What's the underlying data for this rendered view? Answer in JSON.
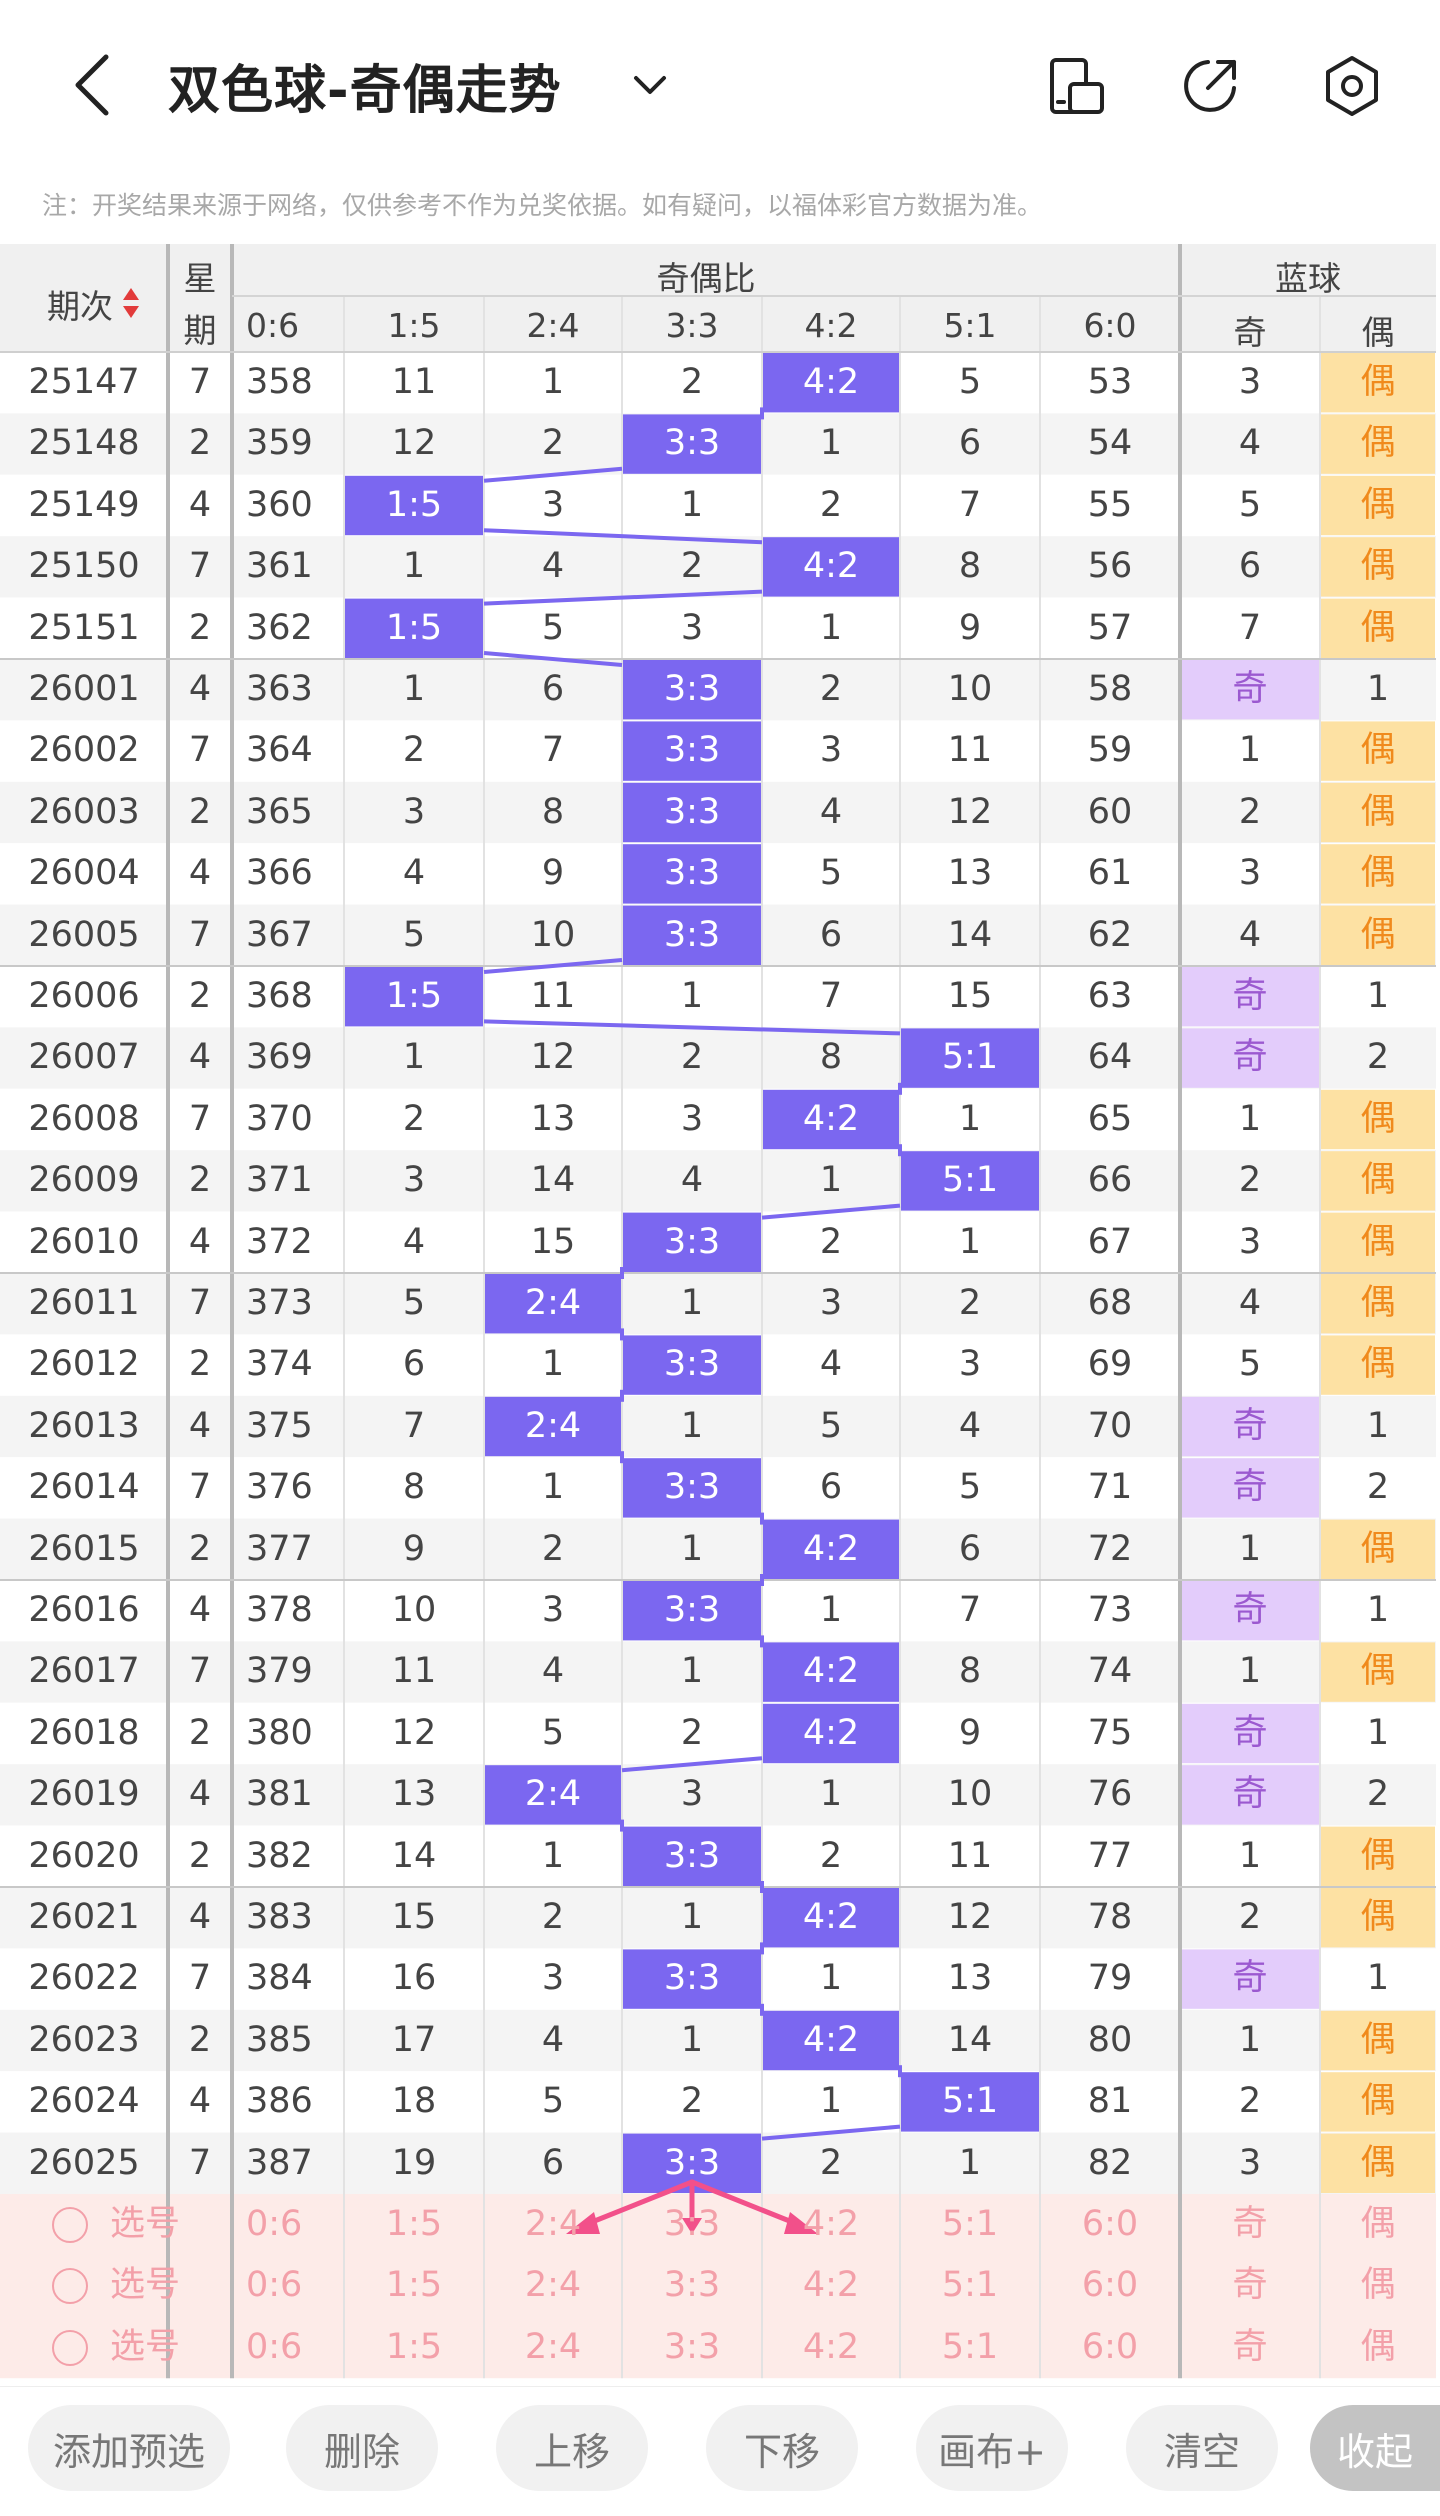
{
  "header": {
    "title": "双色球-奇偶走势",
    "note": "注：开奖结果来源于网络，仅供参考不作为兑奖依据。如有疑问，以福体彩官方数据为准。"
  },
  "icons": {
    "back": "back-arrow-icon",
    "dropdown": "chevron-down-icon",
    "device": "device-rotate-icon",
    "share": "share-icon",
    "settings": "settings-icon"
  },
  "columns": {
    "period": "期次",
    "weekday": "星期",
    "odd_even_group": "奇偶比",
    "ratios": [
      "0:6",
      "1:5",
      "2:4",
      "3:3",
      "4:2",
      "5:1",
      "6:0"
    ],
    "blue_group": "蓝球",
    "blue": [
      "奇",
      "偶"
    ]
  },
  "rows": [
    {
      "p": "25147",
      "w": "7",
      "v": [
        "358",
        "11",
        "1",
        "2",
        "4:2",
        "5",
        "53"
      ],
      "hit": 4,
      "b": [
        "3",
        "偶"
      ],
      "bh": 1
    },
    {
      "p": "25148",
      "w": "2",
      "v": [
        "359",
        "12",
        "2",
        "3:3",
        "1",
        "6",
        "54"
      ],
      "hit": 3,
      "b": [
        "4",
        "偶"
      ],
      "bh": 1
    },
    {
      "p": "25149",
      "w": "4",
      "v": [
        "360",
        "1:5",
        "3",
        "1",
        "2",
        "7",
        "55"
      ],
      "hit": 1,
      "b": [
        "5",
        "偶"
      ],
      "bh": 1
    },
    {
      "p": "25150",
      "w": "7",
      "v": [
        "361",
        "1",
        "4",
        "2",
        "4:2",
        "8",
        "56"
      ],
      "hit": 4,
      "b": [
        "6",
        "偶"
      ],
      "bh": 1
    },
    {
      "p": "25151",
      "w": "2",
      "v": [
        "362",
        "1:5",
        "5",
        "3",
        "1",
        "9",
        "57"
      ],
      "hit": 1,
      "b": [
        "7",
        "偶"
      ],
      "bh": 1
    },
    {
      "p": "26001",
      "w": "4",
      "v": [
        "363",
        "1",
        "6",
        "3:3",
        "2",
        "10",
        "58"
      ],
      "hit": 3,
      "b": [
        "奇",
        "1"
      ],
      "bh": 0
    },
    {
      "p": "26002",
      "w": "7",
      "v": [
        "364",
        "2",
        "7",
        "3:3",
        "3",
        "11",
        "59"
      ],
      "hit": 3,
      "b": [
        "1",
        "偶"
      ],
      "bh": 1
    },
    {
      "p": "26003",
      "w": "2",
      "v": [
        "365",
        "3",
        "8",
        "3:3",
        "4",
        "12",
        "60"
      ],
      "hit": 3,
      "b": [
        "2",
        "偶"
      ],
      "bh": 1
    },
    {
      "p": "26004",
      "w": "4",
      "v": [
        "366",
        "4",
        "9",
        "3:3",
        "5",
        "13",
        "61"
      ],
      "hit": 3,
      "b": [
        "3",
        "偶"
      ],
      "bh": 1
    },
    {
      "p": "26005",
      "w": "7",
      "v": [
        "367",
        "5",
        "10",
        "3:3",
        "6",
        "14",
        "62"
      ],
      "hit": 3,
      "b": [
        "4",
        "偶"
      ],
      "bh": 1
    },
    {
      "p": "26006",
      "w": "2",
      "v": [
        "368",
        "1:5",
        "11",
        "1",
        "7",
        "15",
        "63"
      ],
      "hit": 1,
      "b": [
        "奇",
        "1"
      ],
      "bh": 0
    },
    {
      "p": "26007",
      "w": "4",
      "v": [
        "369",
        "1",
        "12",
        "2",
        "8",
        "5:1",
        "64"
      ],
      "hit": 5,
      "b": [
        "奇",
        "2"
      ],
      "bh": 0
    },
    {
      "p": "26008",
      "w": "7",
      "v": [
        "370",
        "2",
        "13",
        "3",
        "4:2",
        "1",
        "65"
      ],
      "hit": 4,
      "b": [
        "1",
        "偶"
      ],
      "bh": 1
    },
    {
      "p": "26009",
      "w": "2",
      "v": [
        "371",
        "3",
        "14",
        "4",
        "1",
        "5:1",
        "66"
      ],
      "hit": 5,
      "b": [
        "2",
        "偶"
      ],
      "bh": 1
    },
    {
      "p": "26010",
      "w": "4",
      "v": [
        "372",
        "4",
        "15",
        "3:3",
        "2",
        "1",
        "67"
      ],
      "hit": 3,
      "b": [
        "3",
        "偶"
      ],
      "bh": 1
    },
    {
      "p": "26011",
      "w": "7",
      "v": [
        "373",
        "5",
        "2:4",
        "1",
        "3",
        "2",
        "68"
      ],
      "hit": 2,
      "b": [
        "4",
        "偶"
      ],
      "bh": 1
    },
    {
      "p": "26012",
      "w": "2",
      "v": [
        "374",
        "6",
        "1",
        "3:3",
        "4",
        "3",
        "69"
      ],
      "hit": 3,
      "b": [
        "5",
        "偶"
      ],
      "bh": 1
    },
    {
      "p": "26013",
      "w": "4",
      "v": [
        "375",
        "7",
        "2:4",
        "1",
        "5",
        "4",
        "70"
      ],
      "hit": 2,
      "b": [
        "奇",
        "1"
      ],
      "bh": 0
    },
    {
      "p": "26014",
      "w": "7",
      "v": [
        "376",
        "8",
        "1",
        "3:3",
        "6",
        "5",
        "71"
      ],
      "hit": 3,
      "b": [
        "奇",
        "2"
      ],
      "bh": 0
    },
    {
      "p": "26015",
      "w": "2",
      "v": [
        "377",
        "9",
        "2",
        "1",
        "4:2",
        "6",
        "72"
      ],
      "hit": 4,
      "b": [
        "1",
        "偶"
      ],
      "bh": 1
    },
    {
      "p": "26016",
      "w": "4",
      "v": [
        "378",
        "10",
        "3",
        "3:3",
        "1",
        "7",
        "73"
      ],
      "hit": 3,
      "b": [
        "奇",
        "1"
      ],
      "bh": 0
    },
    {
      "p": "26017",
      "w": "7",
      "v": [
        "379",
        "11",
        "4",
        "1",
        "4:2",
        "8",
        "74"
      ],
      "hit": 4,
      "b": [
        "1",
        "偶"
      ],
      "bh": 1
    },
    {
      "p": "26018",
      "w": "2",
      "v": [
        "380",
        "12",
        "5",
        "2",
        "4:2",
        "9",
        "75"
      ],
      "hit": 4,
      "b": [
        "奇",
        "1"
      ],
      "bh": 0
    },
    {
      "p": "26019",
      "w": "4",
      "v": [
        "381",
        "13",
        "2:4",
        "3",
        "1",
        "10",
        "76"
      ],
      "hit": 2,
      "b": [
        "奇",
        "2"
      ],
      "bh": 0
    },
    {
      "p": "26020",
      "w": "2",
      "v": [
        "382",
        "14",
        "1",
        "3:3",
        "2",
        "11",
        "77"
      ],
      "hit": 3,
      "b": [
        "1",
        "偶"
      ],
      "bh": 1
    },
    {
      "p": "26021",
      "w": "4",
      "v": [
        "383",
        "15",
        "2",
        "1",
        "4:2",
        "12",
        "78"
      ],
      "hit": 4,
      "b": [
        "2",
        "偶"
      ],
      "bh": 1
    },
    {
      "p": "26022",
      "w": "7",
      "v": [
        "384",
        "16",
        "3",
        "3:3",
        "1",
        "13",
        "79"
      ],
      "hit": 3,
      "b": [
        "奇",
        "1"
      ],
      "bh": 0
    },
    {
      "p": "26023",
      "w": "2",
      "v": [
        "385",
        "17",
        "4",
        "1",
        "4:2",
        "14",
        "80"
      ],
      "hit": 4,
      "b": [
        "1",
        "偶"
      ],
      "bh": 1
    },
    {
      "p": "26024",
      "w": "4",
      "v": [
        "386",
        "18",
        "5",
        "2",
        "1",
        "5:1",
        "81"
      ],
      "hit": 5,
      "b": [
        "2",
        "偶"
      ],
      "bh": 1
    },
    {
      "p": "26025",
      "w": "7",
      "v": [
        "387",
        "19",
        "6",
        "3:3",
        "2",
        "1",
        "82"
      ],
      "hit": 3,
      "b": [
        "3",
        "偶"
      ],
      "bh": 1
    }
  ],
  "select_rows": [
    {
      "label": "选号",
      "values": [
        "0:6",
        "1:5",
        "2:4",
        "3:3",
        "4:2",
        "5:1",
        "6:0",
        "奇",
        "偶"
      ]
    },
    {
      "label": "选号",
      "values": [
        "0:6",
        "1:5",
        "2:4",
        "3:3",
        "4:2",
        "5:1",
        "6:0",
        "奇",
        "偶"
      ]
    },
    {
      "label": "选号",
      "values": [
        "0:6",
        "1:5",
        "2:4",
        "3:3",
        "4:2",
        "5:1",
        "6:0",
        "奇",
        "偶"
      ]
    }
  ],
  "toolbar": {
    "buttons": [
      "添加预选",
      "删除",
      "上移",
      "下移",
      "画布+",
      "清空",
      "收起"
    ]
  },
  "colors": {
    "hit_purple": "#7b67f0",
    "line_purple": "#7b67f0",
    "blue_odd_bg": "#e3ccfb",
    "blue_odd_text": "#9b59d0",
    "blue_even_bg": "#fde1a3",
    "blue_even_text": "#f08a1c",
    "select_bg": "#fdebe8",
    "select_text": "#f3a0a9",
    "arrow_pink": "#f2508a"
  }
}
